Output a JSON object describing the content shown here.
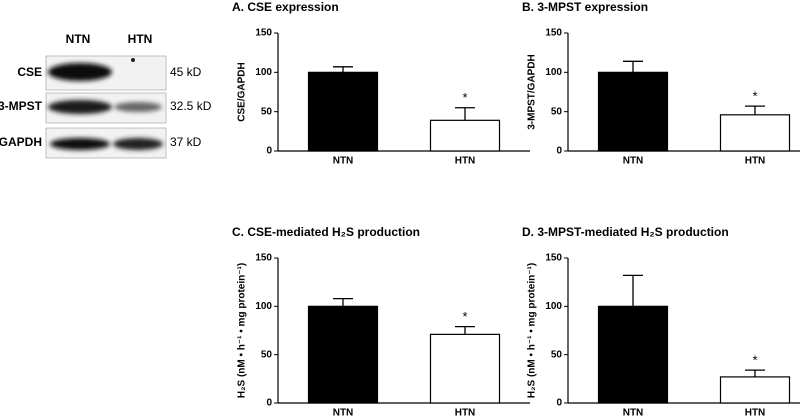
{
  "blot": {
    "lanes": [
      "NTN",
      "HTN"
    ],
    "rows": [
      {
        "label": "CSE",
        "size": "45 kD"
      },
      {
        "label": "3-MPST",
        "size": "32.5 kD"
      },
      {
        "label": "GAPDH",
        "size": "37 kD"
      }
    ]
  },
  "chart_data": [
    {
      "type": "bar",
      "title": "A. CSE expression",
      "ylabel": "CSE/GAPDH",
      "categories": [
        "NTN",
        "HTN"
      ],
      "values": [
        100,
        39
      ],
      "errors": [
        7,
        16
      ],
      "value_annotations": [
        null,
        "*"
      ],
      "colors": [
        "#000000",
        "#ffffff"
      ],
      "ylim": [
        0,
        150
      ],
      "yticks": [
        0,
        50,
        100,
        150
      ]
    },
    {
      "type": "bar",
      "title": "B. 3-MPST expression",
      "ylabel": "3-MPST/GAPDH",
      "categories": [
        "NTN",
        "HTN"
      ],
      "values": [
        100,
        46
      ],
      "errors": [
        14,
        11
      ],
      "value_annotations": [
        null,
        "*"
      ],
      "colors": [
        "#000000",
        "#ffffff"
      ],
      "ylim": [
        0,
        150
      ],
      "yticks": [
        0,
        50,
        100,
        150
      ]
    },
    {
      "type": "bar",
      "title": "C. CSE-mediated H₂S production",
      "ylabel": "H₂S (nM • h⁻¹ • mg protein⁻¹)",
      "categories": [
        "NTN",
        "HTN"
      ],
      "values": [
        100,
        71
      ],
      "errors": [
        8,
        8
      ],
      "value_annotations": [
        null,
        "*"
      ],
      "colors": [
        "#000000",
        "#ffffff"
      ],
      "ylim": [
        0,
        150
      ],
      "yticks": [
        0,
        50,
        100,
        150
      ]
    },
    {
      "type": "bar",
      "title": "D. 3-MPST-mediated H₂S production",
      "ylabel": "H₂S (nM • h⁻¹ • mg protein⁻¹)",
      "categories": [
        "NTN",
        "HTN"
      ],
      "values": [
        100,
        27
      ],
      "errors": [
        32,
        7
      ],
      "value_annotations": [
        null,
        "*"
      ],
      "colors": [
        "#000000",
        "#ffffff"
      ],
      "ylim": [
        0,
        150
      ],
      "yticks": [
        0,
        50,
        100,
        150
      ]
    }
  ]
}
